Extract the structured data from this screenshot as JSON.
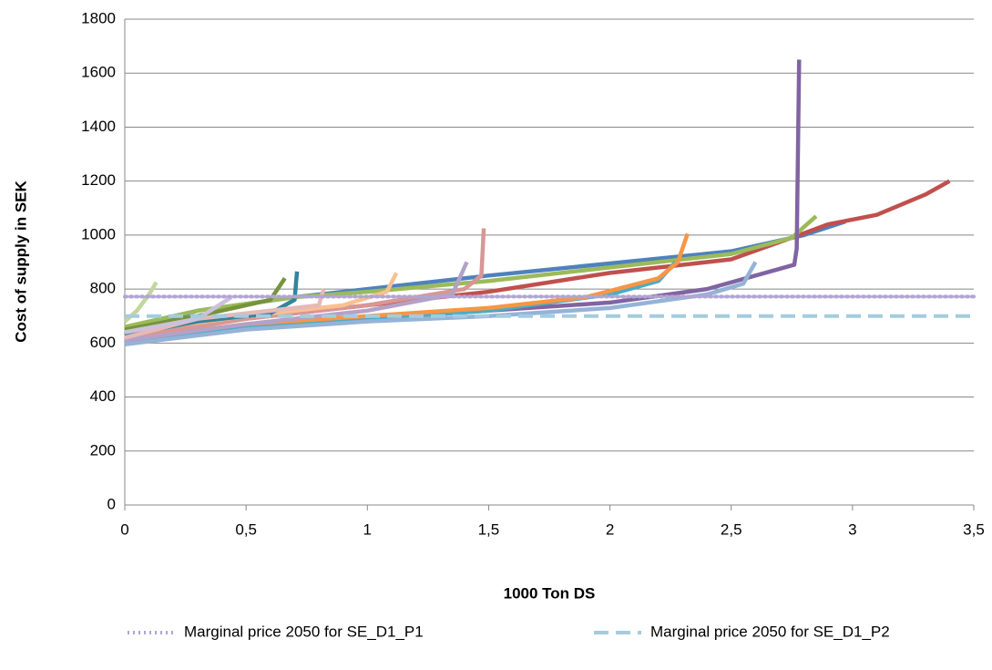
{
  "chart_data": {
    "type": "line",
    "y_label": "Cost of supply in SEK",
    "x_label": "1000 Ton DS",
    "xlim": [
      0,
      3.5
    ],
    "xticks": [
      0,
      {
        "value": 0.5,
        "label": "0,5"
      },
      1,
      {
        "value": 1.5,
        "label": "1,5"
      },
      2,
      {
        "value": 2.5,
        "label": "2,5"
      },
      3,
      {
        "value": 3.5,
        "label": "3,5"
      }
    ],
    "ylim": [
      0,
      1800
    ],
    "yticks": [
      0,
      200,
      400,
      600,
      800,
      1000,
      1200,
      1400,
      1600,
      1800
    ],
    "grid": true,
    "legend": "bottom",
    "series": [
      {
        "color": "#4f81bd",
        "x": [
          0,
          0.3,
          0.7,
          1.0,
          1.5,
          2.0,
          2.5,
          2.8,
          2.97
        ],
        "values": [
          640,
          720,
          770,
          800,
          850,
          895,
          940,
          1000,
          1050
        ]
      },
      {
        "color": "#c0504d",
        "x": [
          0,
          0.5,
          1,
          1.5,
          2,
          2.5,
          2.78,
          2.9,
          3.1,
          3.3,
          3.4
        ],
        "values": [
          620,
          690,
          740,
          790,
          860,
          910,
          1000,
          1040,
          1075,
          1150,
          1200
        ]
      },
      {
        "color": "#9bbb59",
        "x": [
          0,
          0.3,
          0.7,
          1,
          1.5,
          2,
          2.5,
          2.75,
          2.85
        ],
        "values": [
          660,
          720,
          770,
          790,
          830,
          880,
          930,
          990,
          1070
        ]
      },
      {
        "color": "#8064a2",
        "x": [
          0,
          0.5,
          1,
          1.5,
          2,
          2.4,
          2.6,
          2.76,
          2.77,
          2.78
        ],
        "values": [
          600,
          660,
          690,
          720,
          750,
          800,
          850,
          890,
          950,
          1650
        ]
      },
      {
        "color": "#4bacc6",
        "x": [
          0,
          0.5,
          1,
          1.5,
          2,
          2.2,
          2.27
        ],
        "values": [
          610,
          660,
          690,
          720,
          780,
          830,
          900
        ]
      },
      {
        "color": "#f79646",
        "x": [
          0,
          0.5,
          1,
          1.5,
          1.9,
          2.2,
          2.28,
          2.32
        ],
        "values": [
          615,
          670,
          700,
          730,
          770,
          840,
          900,
          1005
        ]
      },
      {
        "color": "#95b3d7",
        "x": [
          0,
          0.5,
          1,
          1.5,
          2,
          2.4,
          2.55,
          2.6
        ],
        "values": [
          595,
          650,
          680,
          700,
          730,
          780,
          820,
          900
        ]
      },
      {
        "color": "#d99694",
        "x": [
          0,
          0.5,
          1,
          1.4,
          1.47,
          1.48
        ],
        "values": [
          620,
          690,
          740,
          800,
          850,
          1025
        ]
      },
      {
        "color": "#b3a2c7",
        "x": [
          0,
          0.5,
          1,
          1.35,
          1.41
        ],
        "values": [
          610,
          670,
          720,
          780,
          900
        ]
      },
      {
        "color": "#fac090",
        "x": [
          0,
          0.5,
          0.9,
          1.08,
          1.12
        ],
        "values": [
          640,
          700,
          740,
          790,
          860
        ]
      },
      {
        "color": "#77933c",
        "x": [
          0,
          0.3,
          0.6,
          0.66
        ],
        "values": [
          650,
          700,
          760,
          840
        ]
      },
      {
        "color": "#31859c",
        "x": [
          0,
          0.3,
          0.6,
          0.7,
          0.71
        ],
        "values": [
          630,
          680,
          710,
          760,
          865
        ]
      },
      {
        "color": "#c3d69b",
        "x": [
          0,
          0.05,
          0.1,
          0.13
        ],
        "values": [
          680,
          720,
          780,
          825
        ]
      },
      {
        "color": "#e6b9b8",
        "x": [
          0,
          0.3,
          0.8,
          0.82
        ],
        "values": [
          620,
          690,
          740,
          800
        ]
      },
      {
        "color": "#ccc1da",
        "x": [
          0,
          0.3,
          0.44
        ],
        "values": [
          640,
          690,
          770
        ]
      },
      {
        "name": "Marginal price 2050 for SE_D1_P1",
        "color": "#b1a5d3",
        "dash": "dotted",
        "x": [
          0,
          3.5
        ],
        "values": [
          772,
          772
        ]
      },
      {
        "name": "Marginal price 2050 for SE_D1_P2",
        "color": "#a5cbde",
        "dash": "dashed",
        "x": [
          0,
          3.5
        ],
        "values": [
          700,
          700
        ]
      }
    ]
  }
}
